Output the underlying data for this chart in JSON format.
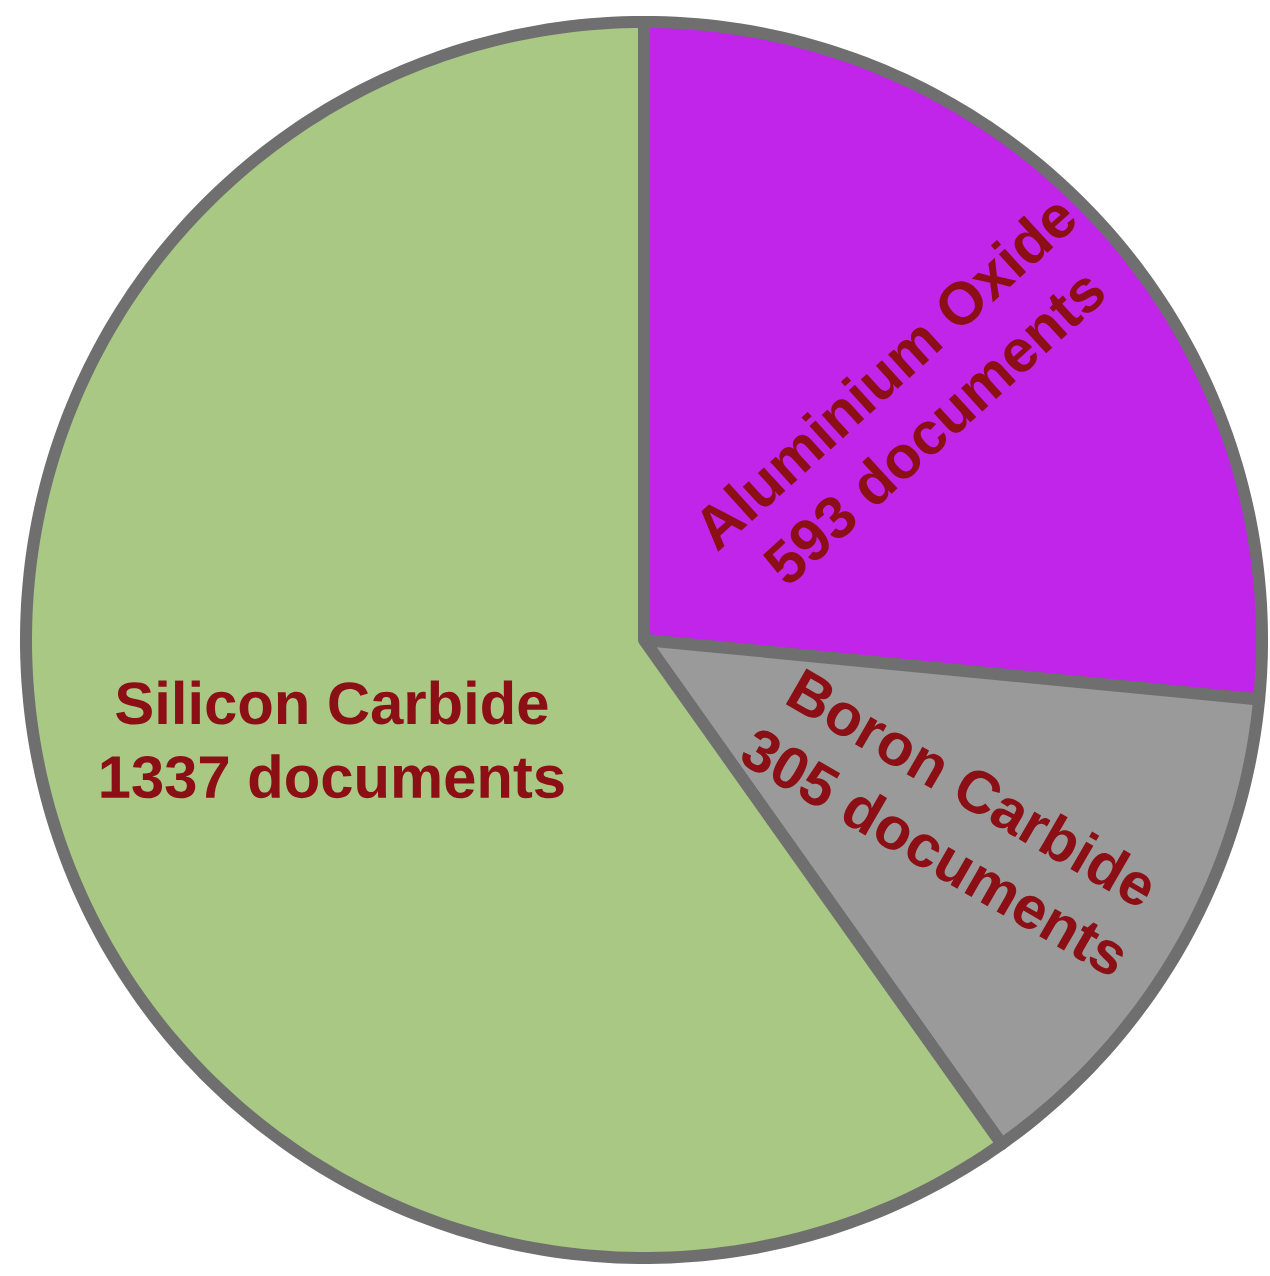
{
  "chart_data": {
    "type": "pie",
    "categories": [
      "Aluminium Oxide",
      "Boron Carbide",
      "Silicon Carbide"
    ],
    "values": [
      593,
      305,
      1337
    ],
    "colors": [
      "#c125e9",
      "#9a9a9a",
      "#a8c884"
    ],
    "value_labels": [
      "593 documents",
      "305 documents",
      "1337 documents"
    ]
  }
}
